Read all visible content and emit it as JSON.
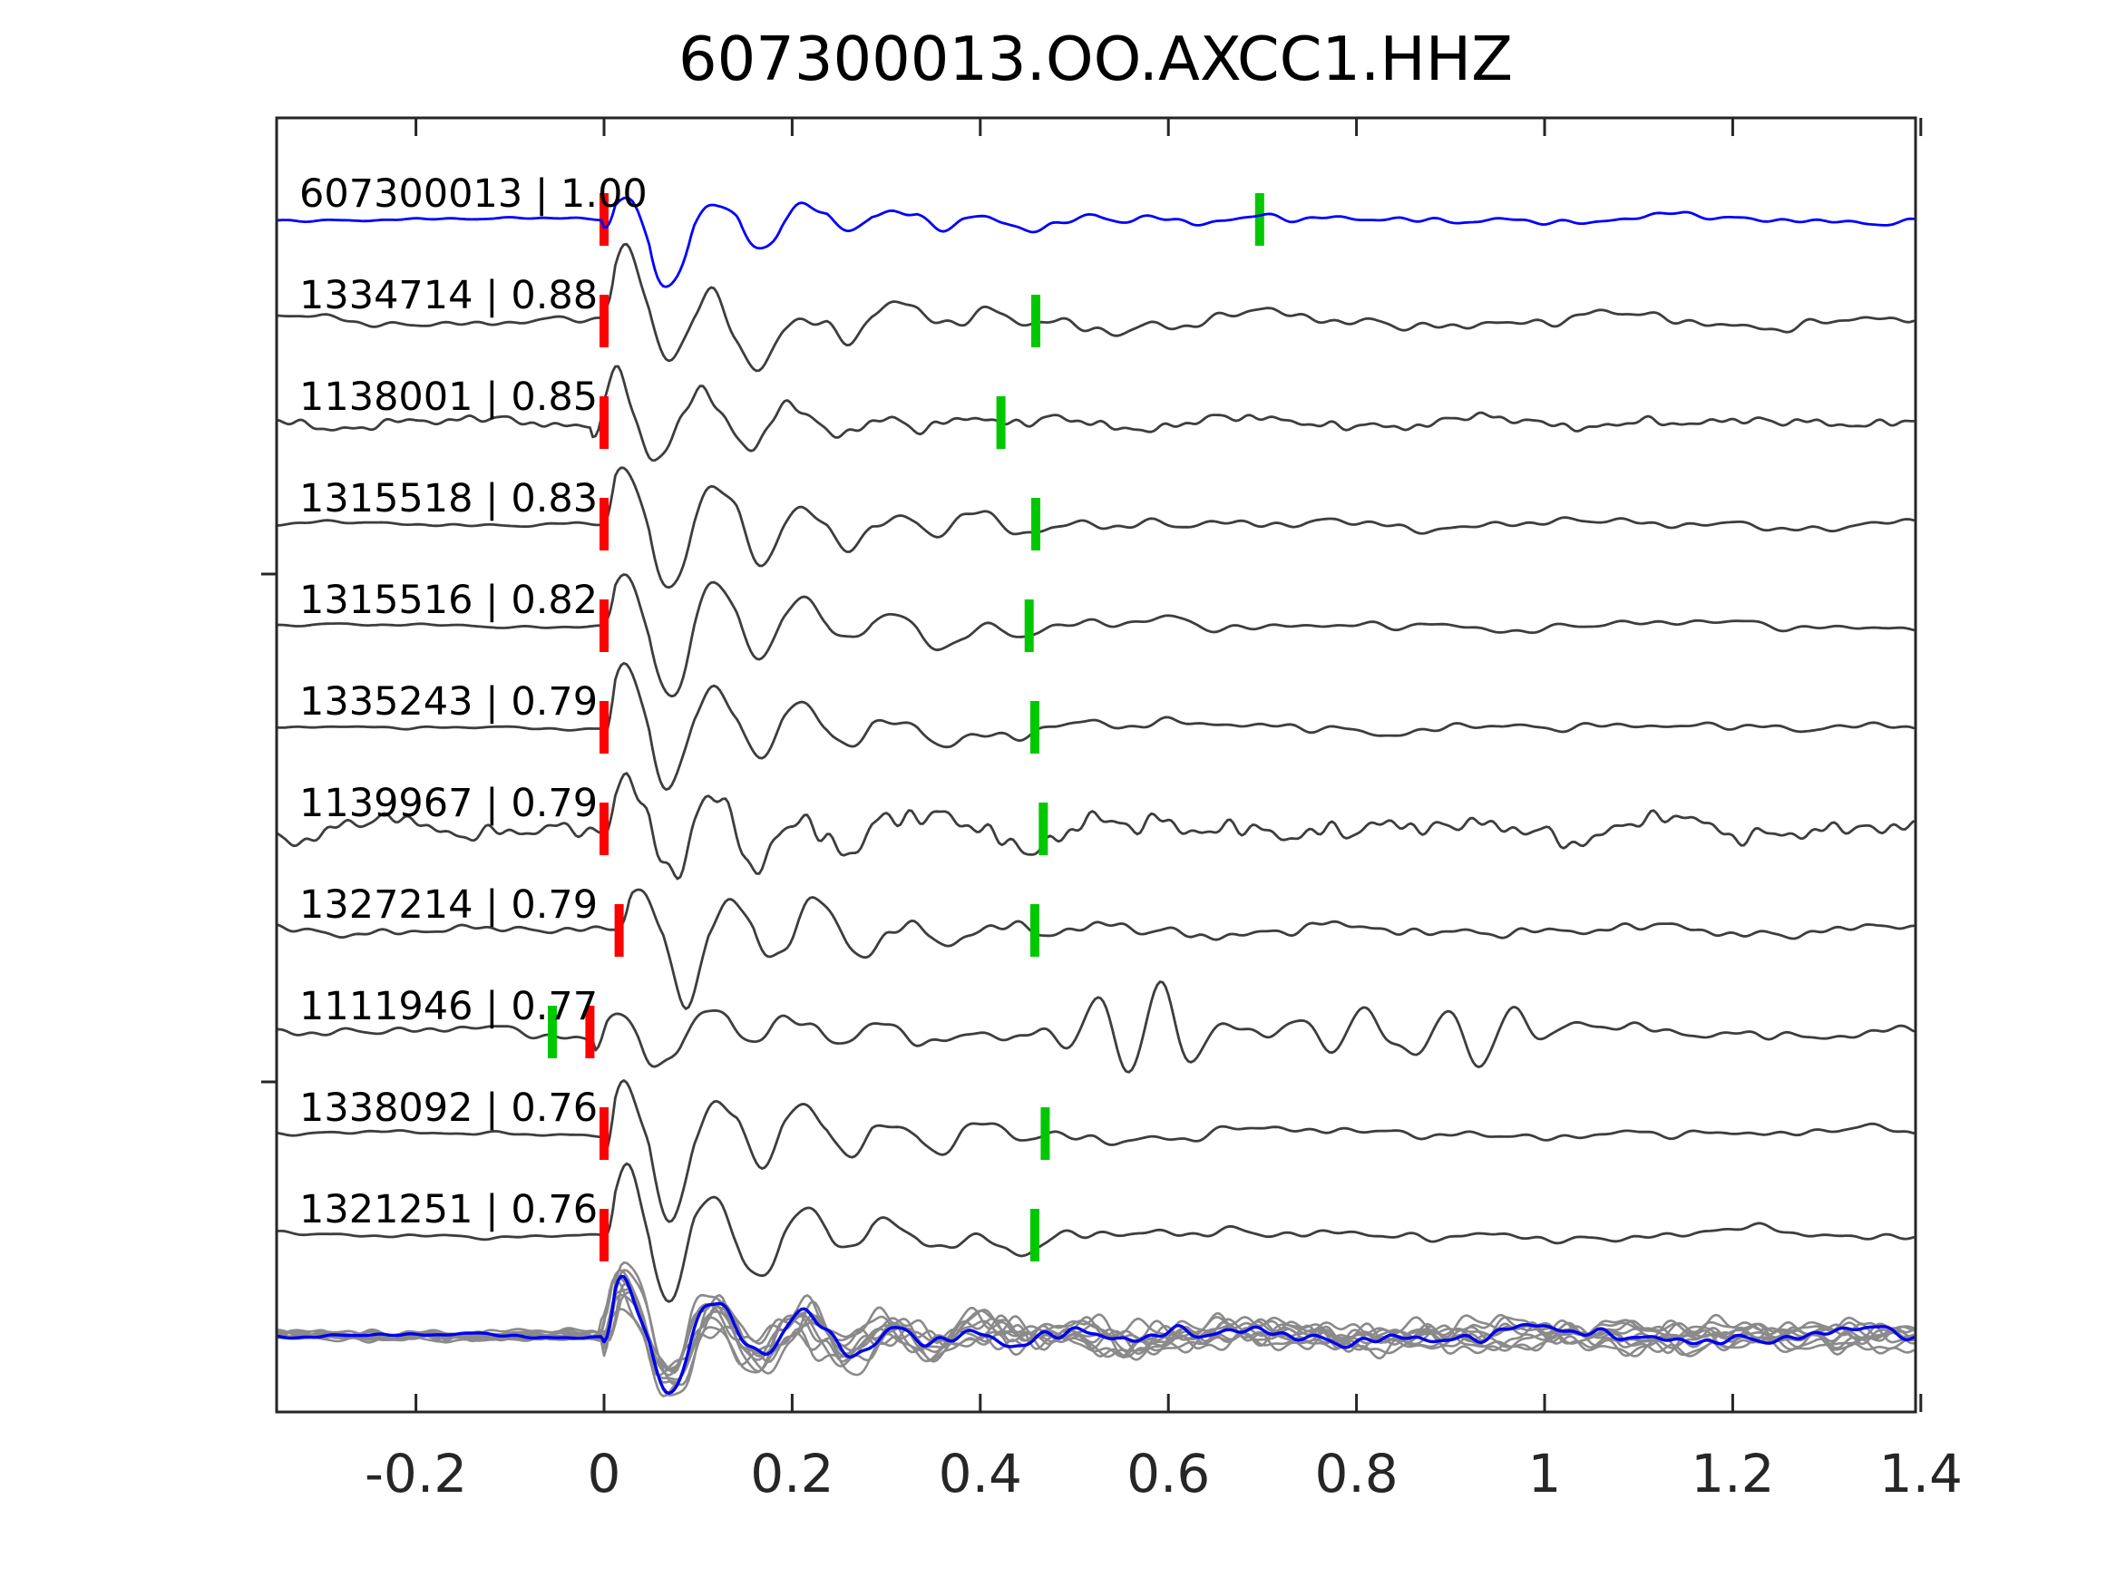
{
  "colors": {
    "template_trace": "#0000ff",
    "detection_trace": "#3d3d3d",
    "stack_overlay": "#8a8a8a",
    "stack_mean": "#0000ee",
    "red_pick": "#ff0000",
    "green_pick": "#00c800",
    "axis": "#262626",
    "text": "#000000"
  },
  "chart_data": {
    "type": "line",
    "title": "607300013.OO.AXCC1.HHZ",
    "xlabel": "",
    "ylabel": "",
    "xlim": [
      -0.348,
      1.394
    ],
    "x_ticks": [
      -0.2,
      0,
      0.2,
      0.4,
      0.6,
      0.8,
      1,
      1.2,
      1.4
    ],
    "x_tick_labels": [
      "-0.2",
      "0",
      "0.2",
      "0.4",
      "0.6",
      "0.8",
      "1",
      "1.2",
      "1.4"
    ],
    "grid": false,
    "legend": "none",
    "traces": [
      {
        "id": "607300013",
        "correlation": "1.00",
        "label": "607300013 | 1.00",
        "color": "template",
        "red_pick_t": 0.0,
        "green_pick_t": 0.697,
        "synth": {
          "seed": 11,
          "t0": 0.0,
          "pre": 2.5,
          "up": 47,
          "dn": 103,
          "coda": 16,
          "decay": 0.28,
          "tail": 6.5,
          "hf": 1.0,
          "bursts": []
        }
      },
      {
        "id": "1334714",
        "correlation": "0.88",
        "label": "1334714 | 0.88",
        "color": "detection",
        "red_pick_t": 0.0,
        "green_pick_t": 0.459,
        "synth": {
          "seed": 22,
          "t0": 0.0,
          "pre": 7,
          "up": 70,
          "dn": 100,
          "coda": 22,
          "decay": 0.3,
          "tail": 10,
          "hf": 1.1,
          "bursts": []
        }
      },
      {
        "id": "1138001",
        "correlation": "0.85",
        "label": "1138001 | 0.85",
        "color": "detection",
        "red_pick_t": 0.0,
        "green_pick_t": 0.422,
        "synth": {
          "seed": 33,
          "t0": -0.012,
          "pre": 9,
          "up": 74,
          "dn": 81,
          "coda": 15,
          "decay": 0.22,
          "tail": 9,
          "hf": 1.5,
          "bursts": []
        }
      },
      {
        "id": "1315518",
        "correlation": "0.83",
        "label": "1315518 | 0.83",
        "color": "detection",
        "red_pick_t": 0.0,
        "green_pick_t": 0.459,
        "synth": {
          "seed": 44,
          "t0": 0.0,
          "pre": 3.5,
          "up": 67,
          "dn": 113,
          "coda": 20,
          "decay": 0.32,
          "tail": 8,
          "hf": 1.0,
          "bursts": []
        }
      },
      {
        "id": "1315516",
        "correlation": "0.82",
        "label": "1315516 | 0.82",
        "color": "detection",
        "red_pick_t": 0.0,
        "green_pick_t": 0.452,
        "synth": {
          "seed": 55,
          "t0": 0.0,
          "pre": 3,
          "up": 70,
          "dn": 117,
          "coda": 20,
          "decay": 0.3,
          "tail": 8,
          "hf": 0.9,
          "bursts": []
        }
      },
      {
        "id": "1335243",
        "correlation": "0.79",
        "label": "1335243 | 0.79",
        "color": "detection",
        "red_pick_t": 0.0,
        "green_pick_t": 0.458,
        "synth": {
          "seed": 66,
          "t0": 0.0,
          "pre": 3,
          "up": 77,
          "dn": 125,
          "coda": 19,
          "decay": 0.28,
          "tail": 8,
          "hf": 1.0,
          "bursts": []
        }
      },
      {
        "id": "1139967",
        "correlation": "0.79",
        "label": "1139967 | 0.79",
        "color": "detection",
        "red_pick_t": 0.0,
        "green_pick_t": 0.467,
        "synth": {
          "seed": 77,
          "t0": 0.0,
          "pre": 15,
          "up": 58,
          "dn": 94,
          "coda": 20,
          "decay": 0.5,
          "tail": 15,
          "hf": 1.6,
          "bursts": []
        }
      },
      {
        "id": "1327214",
        "correlation": "0.79",
        "label": "1327214 | 0.79",
        "color": "detection",
        "red_pick_t": 0.016,
        "green_pick_t": 0.458,
        "synth": {
          "seed": 88,
          "t0": 0.016,
          "pre": 8,
          "up": 72,
          "dn": 113,
          "coda": 18,
          "decay": 0.3,
          "tail": 9,
          "hf": 1.2,
          "bursts": []
        }
      },
      {
        "id": "1111946",
        "correlation": "0.77",
        "label": "1111946 | 0.77",
        "color": "detection",
        "red_pick_t": -0.015,
        "green_pick_t": -0.055,
        "synth": {
          "seed": 99,
          "t0": -0.01,
          "pre": 9,
          "up": 37,
          "dn": 59,
          "coda": 10,
          "decay": 0.3,
          "tail": 10,
          "hf": 1.1,
          "bursts": [
            {
              "t": 0.575,
              "a": 55,
              "w": 0.05
            },
            {
              "t": 0.79,
              "a": 25,
              "w": 0.05
            },
            {
              "t": 0.915,
              "a": -38,
              "w": 0.05
            }
          ]
        }
      },
      {
        "id": "1338092",
        "correlation": "0.76",
        "label": "1338092 | 0.76",
        "color": "detection",
        "red_pick_t": 0.0,
        "green_pick_t": 0.469,
        "synth": {
          "seed": 110,
          "t0": 0.0,
          "pre": 4,
          "up": 70,
          "dn": 133,
          "coda": 20,
          "decay": 0.3,
          "tail": 8,
          "hf": 1.0,
          "bursts": []
        }
      },
      {
        "id": "1321251",
        "correlation": "0.76",
        "label": "1321251 | 0.76",
        "color": "detection",
        "red_pick_t": 0.0,
        "green_pick_t": 0.458,
        "synth": {
          "seed": 121,
          "t0": 0.0,
          "pre": 4,
          "up": 72,
          "dn": 125,
          "coda": 22,
          "decay": 0.32,
          "tail": 8,
          "hf": 1.0,
          "bursts": []
        }
      },
      {
        "id": "stack",
        "correlation": "",
        "label": "",
        "color": "stack",
        "red_pick_t": null,
        "green_pick_t": null,
        "synth": {
          "seed": 500,
          "t0": 0.0,
          "pre": 3,
          "up": 72,
          "dn": 91,
          "coda": 12,
          "decay": 0.6,
          "tail": 9,
          "hf": 1.2,
          "bursts": []
        },
        "overlays": {
          "count": 10,
          "scales": [
            1.0,
            0.92,
            0.85,
            1.05,
            0.78,
            0.6,
            0.95,
            0.88,
            1.0,
            0.7
          ],
          "pre": 7,
          "coda": 16,
          "decay": 0.8,
          "tail": 14
        }
      }
    ]
  }
}
